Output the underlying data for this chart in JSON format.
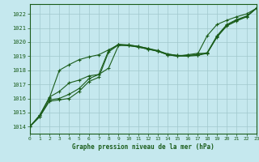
{
  "title": "Graphe pression niveau de la mer (hPa)",
  "background_color": "#c5e8ee",
  "grid_color": "#a0c8cc",
  "line_color": "#1a5c1a",
  "ylim": [
    1013.5,
    1022.7
  ],
  "xlim": [
    0,
    23
  ],
  "yticks": [
    1014,
    1015,
    1016,
    1017,
    1018,
    1019,
    1020,
    1021,
    1022
  ],
  "xticks": [
    0,
    1,
    2,
    3,
    4,
    5,
    6,
    7,
    8,
    9,
    10,
    11,
    12,
    13,
    14,
    15,
    16,
    17,
    18,
    19,
    20,
    21,
    22,
    23
  ],
  "series": [
    [
      1014.0,
      1014.7,
      1015.8,
      1015.9,
      1016.0,
      1016.5,
      1017.2,
      1017.5,
      1019.3,
      1019.8,
      1019.75,
      1019.65,
      1019.5,
      1019.35,
      1019.1,
      1019.0,
      1019.0,
      1019.05,
      1019.2,
      1020.4,
      1021.2,
      1021.55,
      1021.8,
      1022.4
    ],
    [
      1014.0,
      1014.7,
      1015.9,
      1016.0,
      1016.3,
      1016.7,
      1017.4,
      1017.7,
      1019.4,
      1019.85,
      1019.8,
      1019.7,
      1019.55,
      1019.4,
      1019.15,
      1019.05,
      1019.05,
      1019.1,
      1019.25,
      1020.45,
      1021.25,
      1021.6,
      1021.85,
      1022.4
    ],
    [
      1014.0,
      1014.8,
      1016.05,
      1018.0,
      1018.4,
      1018.75,
      1018.95,
      1019.1,
      1019.45,
      1019.8,
      1019.75,
      1019.65,
      1019.5,
      1019.35,
      1019.15,
      1019.05,
      1019.05,
      1019.1,
      1020.45,
      1021.25,
      1021.55,
      1021.8,
      1022.0,
      1022.4
    ],
    [
      1014.0,
      1014.8,
      1016.1,
      1016.5,
      1017.1,
      1017.3,
      1017.6,
      1017.7,
      1018.15,
      1019.75,
      1019.8,
      1019.7,
      1019.55,
      1019.35,
      1019.1,
      1019.0,
      1019.1,
      1019.2,
      1019.2,
      1020.35,
      1021.15,
      1021.5,
      1021.8,
      1022.4
    ]
  ]
}
